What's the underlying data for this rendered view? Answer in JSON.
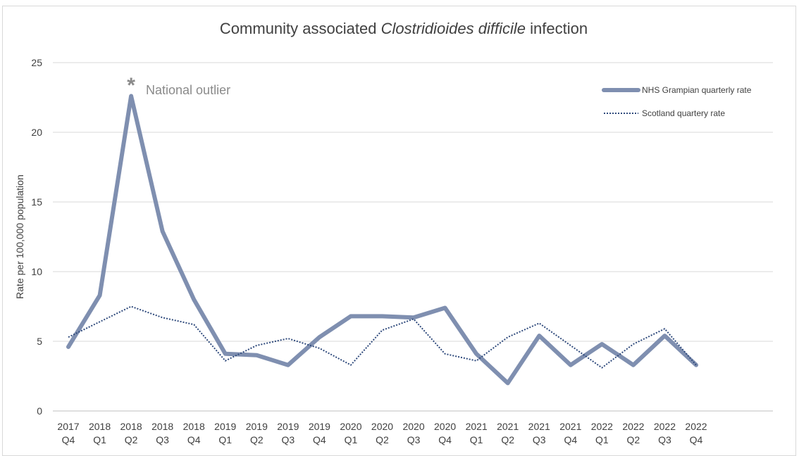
{
  "chart_data": {
    "type": "line",
    "title_plain": "Community associated ",
    "title_italic": "Clostridioides difficile",
    "title_suffix": " infection",
    "ylabel": "Rate per 100,000 population",
    "xlabel": "",
    "ylim": [
      0,
      25
    ],
    "yticks": [
      0,
      5,
      10,
      15,
      20,
      25
    ],
    "grid": true,
    "legend_position": "top-right",
    "categories": [
      [
        "2017",
        "Q4"
      ],
      [
        "2018",
        "Q1"
      ],
      [
        "2018",
        "Q2"
      ],
      [
        "2018",
        "Q3"
      ],
      [
        "2018",
        "Q4"
      ],
      [
        "2019",
        "Q1"
      ],
      [
        "2019",
        "Q2"
      ],
      [
        "2019",
        "Q3"
      ],
      [
        "2019",
        "Q4"
      ],
      [
        "2020",
        "Q1"
      ],
      [
        "2020",
        "Q2"
      ],
      [
        "2020",
        "Q3"
      ],
      [
        "2020",
        "Q4"
      ],
      [
        "2021",
        "Q1"
      ],
      [
        "2021",
        "Q2"
      ],
      [
        "2021",
        "Q3"
      ],
      [
        "2021",
        "Q4"
      ],
      [
        "2022",
        "Q1"
      ],
      [
        "2022",
        "Q2"
      ],
      [
        "2022",
        "Q3"
      ],
      [
        "2022",
        "Q4"
      ]
    ],
    "series": [
      {
        "name": "NHS Grampian quarterly rate",
        "style": "solid",
        "color": "#7f8fb0",
        "values": [
          4.6,
          8.3,
          22.6,
          12.9,
          8.0,
          4.1,
          4.0,
          3.3,
          5.3,
          6.8,
          6.8,
          6.7,
          7.4,
          4.1,
          2.0,
          5.4,
          3.3,
          4.8,
          3.3,
          5.4,
          3.3
        ]
      },
      {
        "name": "Scotland quartery rate",
        "style": "dotted",
        "color": "#2f4a7c",
        "values": [
          5.3,
          6.4,
          7.5,
          6.7,
          6.2,
          3.6,
          4.7,
          5.2,
          4.5,
          3.3,
          5.8,
          6.6,
          4.1,
          3.6,
          5.3,
          6.3,
          4.7,
          3.1,
          4.8,
          5.9,
          3.3
        ]
      }
    ],
    "annotation": {
      "marker": "*",
      "text": "National outlier",
      "series_index": 0,
      "point_index": 2
    }
  }
}
